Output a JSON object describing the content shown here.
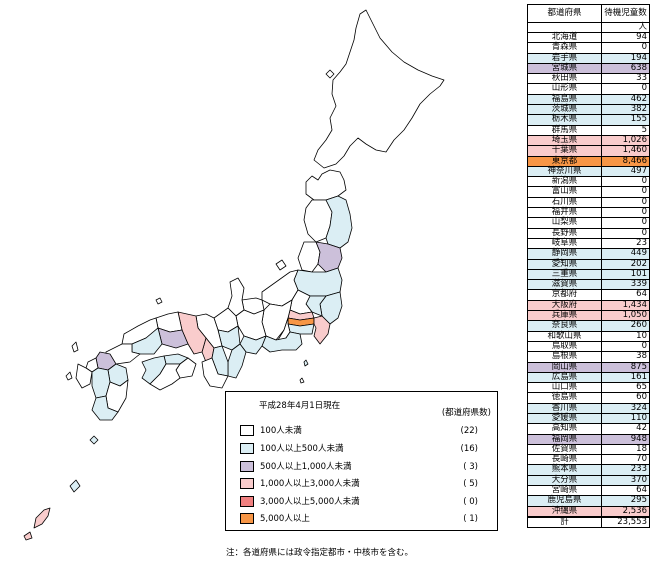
{
  "colors": {
    "lt100": "#ffffff",
    "b100_500": "#dbeef4",
    "b500_1000": "#ccc0da",
    "b1000_3000": "#f9cccc",
    "b3000_5000": "#f08080",
    "ge5000": "#f79646"
  },
  "legend": {
    "date_label": "平成28年4月1日現在",
    "count_header": "(都道府県数)",
    "items": [
      {
        "label": "100人未満",
        "count": "(22)",
        "color": "#ffffff"
      },
      {
        "label": "100人以上500人未満",
        "count": "(16)",
        "color": "#dbeef4"
      },
      {
        "label": "500人以上1,000人未満",
        "count": "( 3)",
        "color": "#ccc0da"
      },
      {
        "label": "1,000人以上3,000人未満",
        "count": "( 5)",
        "color": "#f9cccc"
      },
      {
        "label": "3,000人以上5,000人未満",
        "count": "( 0)",
        "color": "#f08080"
      },
      {
        "label": "5,000人以上",
        "count": "( 1)",
        "color": "#f79646"
      }
    ]
  },
  "note": "注：各道府県には政令指定都市・中核市を含む。",
  "table": {
    "header_pref": "都道府県",
    "header_value": "待機児童数",
    "unit": "人",
    "rows": [
      {
        "pref": "北海道",
        "value": "94",
        "color": "#ffffff"
      },
      {
        "pref": "青森県",
        "value": "0",
        "color": "#ffffff"
      },
      {
        "pref": "岩手県",
        "value": "194",
        "color": "#dbeef4"
      },
      {
        "pref": "宮城県",
        "value": "638",
        "color": "#ccc0da"
      },
      {
        "pref": "秋田県",
        "value": "33",
        "color": "#ffffff"
      },
      {
        "pref": "山形県",
        "value": "0",
        "color": "#ffffff"
      },
      {
        "pref": "福島県",
        "value": "462",
        "color": "#dbeef4"
      },
      {
        "pref": "茨城県",
        "value": "382",
        "color": "#dbeef4"
      },
      {
        "pref": "栃木県",
        "value": "155",
        "color": "#dbeef4"
      },
      {
        "pref": "群馬県",
        "value": "5",
        "color": "#ffffff"
      },
      {
        "pref": "埼玉県",
        "value": "1,026",
        "color": "#f9cccc"
      },
      {
        "pref": "千葉県",
        "value": "1,460",
        "color": "#f9cccc"
      },
      {
        "pref": "東京都",
        "value": "8,466",
        "color": "#f79646"
      },
      {
        "pref": "神奈川県",
        "value": "497",
        "color": "#dbeef4"
      },
      {
        "pref": "新潟県",
        "value": "0",
        "color": "#ffffff"
      },
      {
        "pref": "富山県",
        "value": "0",
        "color": "#ffffff"
      },
      {
        "pref": "石川県",
        "value": "0",
        "color": "#ffffff"
      },
      {
        "pref": "福井県",
        "value": "0",
        "color": "#ffffff"
      },
      {
        "pref": "山梨県",
        "value": "0",
        "color": "#ffffff"
      },
      {
        "pref": "長野県",
        "value": "0",
        "color": "#ffffff"
      },
      {
        "pref": "岐阜県",
        "value": "23",
        "color": "#ffffff"
      },
      {
        "pref": "静岡県",
        "value": "449",
        "color": "#dbeef4"
      },
      {
        "pref": "愛知県",
        "value": "202",
        "color": "#dbeef4"
      },
      {
        "pref": "三重県",
        "value": "101",
        "color": "#dbeef4"
      },
      {
        "pref": "滋賀県",
        "value": "339",
        "color": "#dbeef4"
      },
      {
        "pref": "京都府",
        "value": "64",
        "color": "#ffffff"
      },
      {
        "pref": "大阪府",
        "value": "1,434",
        "color": "#f9cccc"
      },
      {
        "pref": "兵庫県",
        "value": "1,050",
        "color": "#f9cccc"
      },
      {
        "pref": "奈良県",
        "value": "260",
        "color": "#dbeef4"
      },
      {
        "pref": "和歌山県",
        "value": "10",
        "color": "#ffffff"
      },
      {
        "pref": "鳥取県",
        "value": "0",
        "color": "#ffffff"
      },
      {
        "pref": "島根県",
        "value": "38",
        "color": "#ffffff"
      },
      {
        "pref": "岡山県",
        "value": "875",
        "color": "#ccc0da"
      },
      {
        "pref": "広島県",
        "value": "161",
        "color": "#dbeef4"
      },
      {
        "pref": "山口県",
        "value": "65",
        "color": "#ffffff"
      },
      {
        "pref": "徳島県",
        "value": "60",
        "color": "#ffffff"
      },
      {
        "pref": "香川県",
        "value": "324",
        "color": "#dbeef4"
      },
      {
        "pref": "愛媛県",
        "value": "110",
        "color": "#dbeef4"
      },
      {
        "pref": "高知県",
        "value": "42",
        "color": "#ffffff"
      },
      {
        "pref": "福岡県",
        "value": "948",
        "color": "#ccc0da"
      },
      {
        "pref": "佐賀県",
        "value": "18",
        "color": "#ffffff"
      },
      {
        "pref": "長崎県",
        "value": "70",
        "color": "#ffffff"
      },
      {
        "pref": "熊本県",
        "value": "233",
        "color": "#dbeef4"
      },
      {
        "pref": "大分県",
        "value": "370",
        "color": "#dbeef4"
      },
      {
        "pref": "宮崎県",
        "value": "64",
        "color": "#ffffff"
      },
      {
        "pref": "鹿児島県",
        "value": "295",
        "color": "#dbeef4"
      },
      {
        "pref": "沖縄県",
        "value": "2,536",
        "color": "#f9cccc"
      }
    ],
    "total_label": "計",
    "total_value": "23,553"
  }
}
